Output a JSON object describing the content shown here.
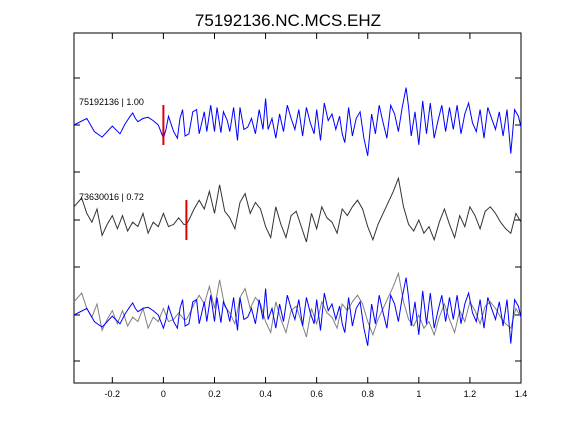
{
  "chart_data": {
    "type": "line",
    "title": "75192136.NC.MCS.EHZ",
    "xlabel": "",
    "ylabel": "",
    "xlim": [
      -0.35,
      1.4
    ],
    "xticks": [
      -0.2,
      0,
      0.2,
      0.4,
      0.6,
      0.8,
      1,
      1.2,
      1.4
    ],
    "xtick_labels": [
      "-0.2",
      "0",
      "0.2",
      "0.4",
      "0.6",
      "0.8",
      "1",
      "1.2",
      "1.4"
    ],
    "grid": false,
    "colors": {
      "primary": "#0000ff",
      "secondary": "#333333",
      "overlay_secondary": "#808080",
      "pick": "#dd0000"
    },
    "traces": [
      {
        "label": "75192136 | 1.00",
        "color": "#0000ff",
        "pick_time": 0.0,
        "offset": 0
      },
      {
        "label": "73630016 | 0.72",
        "color": "#333333",
        "pick_time": 0.09,
        "offset": 1
      }
    ],
    "series": [
      {
        "t": [
          -0.35,
          -0.3,
          -0.27,
          -0.24,
          -0.2,
          -0.17,
          -0.15,
          -0.13,
          -0.12,
          -0.11,
          -0.1,
          -0.08,
          -0.06,
          -0.04,
          -0.02,
          0.0,
          0.01,
          0.02,
          0.04,
          0.055,
          0.065,
          0.075,
          0.085,
          0.1,
          0.115,
          0.13,
          0.14,
          0.16,
          0.17,
          0.185,
          0.2,
          0.21,
          0.225,
          0.235,
          0.25,
          0.26,
          0.275,
          0.29,
          0.3,
          0.315,
          0.33,
          0.345,
          0.36,
          0.375,
          0.39,
          0.4,
          0.41,
          0.425,
          0.44,
          0.455,
          0.47,
          0.485,
          0.5,
          0.515,
          0.53,
          0.545,
          0.56,
          0.575,
          0.59,
          0.6,
          0.615,
          0.63,
          0.645,
          0.66,
          0.675,
          0.69,
          0.7,
          0.71,
          0.725,
          0.74,
          0.755,
          0.77,
          0.785,
          0.8,
          0.815,
          0.83,
          0.845,
          0.86,
          0.875,
          0.89,
          0.905,
          0.92,
          0.935,
          0.95,
          0.96,
          0.97,
          0.985,
          1.0,
          1.015,
          1.03,
          1.045,
          1.06,
          1.075,
          1.09,
          1.105,
          1.12,
          1.135,
          1.15,
          1.165,
          1.18,
          1.195,
          1.21,
          1.225,
          1.24,
          1.255,
          1.27,
          1.285,
          1.3,
          1.315,
          1.33,
          1.345,
          1.36,
          1.375,
          1.39,
          1.4
        ],
        "v": [
          0.0,
          0.3,
          -0.3,
          -0.55,
          -0.05,
          -0.4,
          0.05,
          0.4,
          0.55,
          0.3,
          0.15,
          0.3,
          0.35,
          0.2,
          0.0,
          -0.6,
          -0.2,
          0.4,
          -0.3,
          -0.6,
          0.3,
          0.7,
          -0.5,
          -0.4,
          0.6,
          0.7,
          -0.4,
          0.6,
          -0.3,
          0.9,
          -0.3,
          0.8,
          -0.35,
          0.6,
          0.2,
          -0.3,
          0.8,
          -0.7,
          0.8,
          -0.2,
          -0.1,
          0.3,
          -0.4,
          0.7,
          -0.2,
          1.2,
          -0.2,
          0.3,
          -0.6,
          0.5,
          -0.3,
          0.9,
          0.3,
          -0.2,
          0.7,
          -0.5,
          0.8,
          0.1,
          -0.4,
          0.7,
          -0.7,
          1.0,
          0.2,
          0.5,
          -0.2,
          0.4,
          -0.4,
          -0.8,
          0.8,
          -0.5,
          0.3,
          0.6,
          -0.6,
          -1.4,
          0.5,
          -0.4,
          0.9,
          0.1,
          -0.6,
          0.9,
          0.5,
          -0.3,
          0.8,
          1.7,
          0.8,
          -0.5,
          0.6,
          -0.9,
          1.1,
          -0.4,
          1.0,
          -0.6,
          0.2,
          0.9,
          -0.3,
          0.8,
          -0.2,
          0.9,
          -0.4,
          0.5,
          1.0,
          0.1,
          -0.3,
          0.7,
          -0.6,
          0.8,
          0.3,
          -0.2,
          0.6,
          -0.5,
          0.7,
          -1.3,
          0.7,
          0.4,
          -0.1
        ]
      },
      {
        "t": [
          -0.35,
          -0.32,
          -0.3,
          -0.28,
          -0.26,
          -0.24,
          -0.22,
          -0.2,
          -0.18,
          -0.16,
          -0.14,
          -0.12,
          -0.1,
          -0.08,
          -0.06,
          -0.04,
          -0.02,
          0.0,
          0.02,
          0.04,
          0.06,
          0.08,
          0.09,
          0.1,
          0.12,
          0.14,
          0.16,
          0.18,
          0.2,
          0.22,
          0.24,
          0.26,
          0.28,
          0.3,
          0.32,
          0.34,
          0.36,
          0.38,
          0.4,
          0.42,
          0.44,
          0.46,
          0.48,
          0.5,
          0.52,
          0.54,
          0.56,
          0.58,
          0.6,
          0.62,
          0.64,
          0.66,
          0.68,
          0.7,
          0.72,
          0.74,
          0.76,
          0.78,
          0.8,
          0.82,
          0.84,
          0.86,
          0.88,
          0.9,
          0.92,
          0.94,
          0.96,
          0.98,
          1.0,
          1.02,
          1.04,
          1.06,
          1.08,
          1.1,
          1.12,
          1.14,
          1.16,
          1.18,
          1.2,
          1.22,
          1.24,
          1.26,
          1.28,
          1.3,
          1.32,
          1.34,
          1.36,
          1.38,
          1.4
        ],
        "v": [
          0.6,
          1.0,
          0.3,
          -0.1,
          0.5,
          -0.7,
          -0.2,
          0.2,
          -0.4,
          0.2,
          -0.5,
          -0.1,
          -0.3,
          0.3,
          -0.6,
          -0.1,
          -0.3,
          0.3,
          -0.3,
          -0.2,
          0.1,
          -0.2,
          -0.2,
          0.0,
          0.5,
          0.9,
          0.5,
          1.3,
          0.3,
          1.6,
          0.4,
          0.1,
          -0.4,
          0.8,
          1.2,
          0.3,
          0.8,
          0.5,
          -0.3,
          -0.8,
          0.6,
          -0.2,
          -0.8,
          0.2,
          0.4,
          -0.3,
          -1.0,
          0.3,
          -0.4,
          0.6,
          0.1,
          -0.1,
          -0.6,
          0.5,
          0.2,
          0.6,
          0.9,
          0.5,
          -0.3,
          -0.9,
          -0.2,
          0.3,
          0.8,
          1.3,
          1.9,
          0.6,
          -0.2,
          -0.5,
          0.0,
          -0.6,
          -0.3,
          -0.9,
          -0.1,
          0.5,
          -0.2,
          -0.8,
          0.2,
          -0.3,
          0.6,
          0.2,
          -0.4,
          0.4,
          0.6,
          0.3,
          -0.1,
          -0.4,
          -0.6,
          0.3,
          -0.1
        ]
      }
    ]
  }
}
